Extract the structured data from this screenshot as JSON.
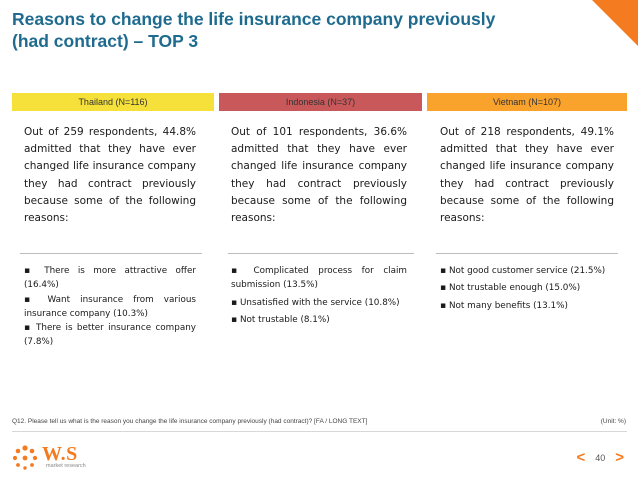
{
  "title": {
    "line1": "Reasons to change the life insurance company previously",
    "line2": "(had contract) – TOP 3"
  },
  "columns": [
    {
      "header": "Thailand (N=116)",
      "header_color": "#f6e13a",
      "intro": "Out of 259 respondents, 44.8% admitted that they have ever changed life insurance company they had contract previously because some of the following reasons:",
      "reasons": [
        "There is more attractive offer (16.4%)",
        "Want insurance from various insurance company (10.3%)",
        "There is better insurance company (7.8%)"
      ]
    },
    {
      "header": "Indonesia (N=37)",
      "header_color": "#c9585a",
      "intro": "Out of 101 respondents, 36.6% admitted that they have ever changed life insurance company they had contract previously because some of the following reasons:",
      "reasons": [
        "Complicated process for claim submission (13.5%)",
        "Unsatisfied with the service (10.8%)",
        "Not trustable (8.1%)"
      ]
    },
    {
      "header": "Vietnam (N=107)",
      "header_color": "#f9a22c",
      "intro": "Out of 218 respondents, 49.1% admitted that they have ever changed life insurance company they had contract previously because some of the following reasons:",
      "reasons": [
        "Not good customer service (21.5%)",
        "Not trustable enough (15.0%)",
        "Not many benefits (13.1%)"
      ]
    }
  ],
  "footnote": "Q12. Please tell us what is the reason you change the life insurance company previously (had contract)? [FA / LONG TEXT]",
  "unit": "(Unit: %)",
  "logo": {
    "name": "W.S",
    "subtitle": "market research"
  },
  "page_number": "40",
  "colors": {
    "accent": "#f47b20",
    "title": "#1f6b8f"
  }
}
